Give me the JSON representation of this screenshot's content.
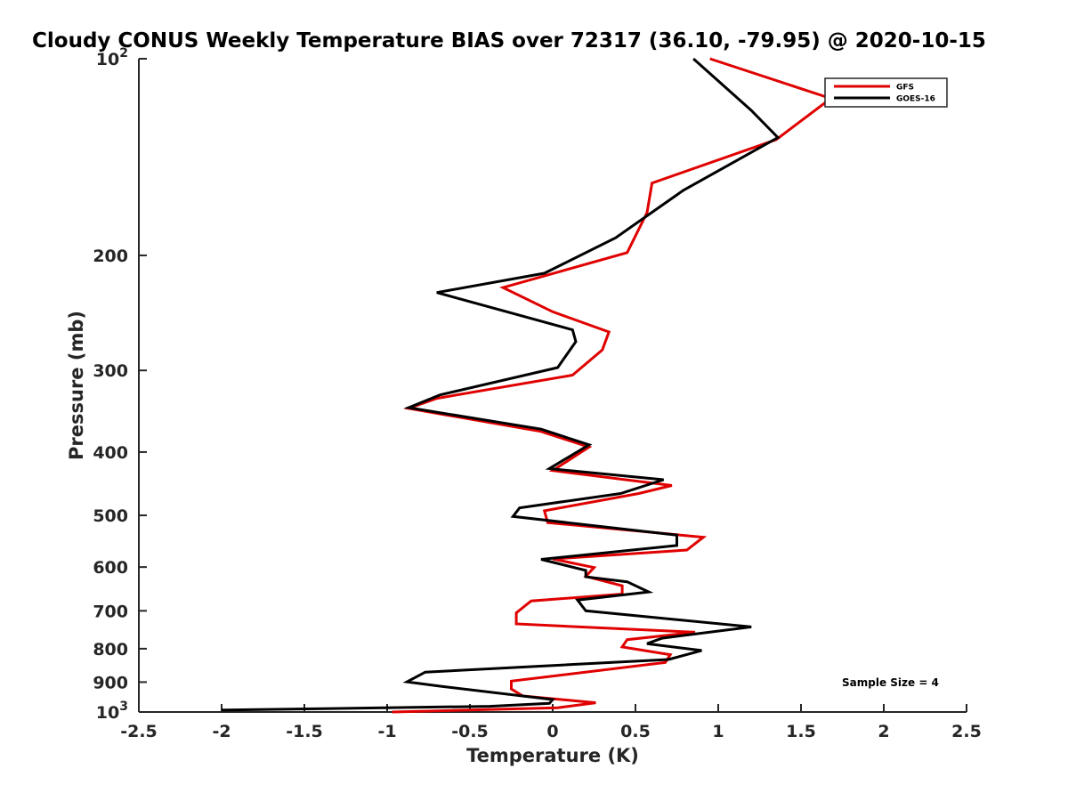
{
  "chart_data": {
    "type": "line",
    "title": "Cloudy CONUS Weekly Temperature BIAS over 72317 (36.10, -79.95) @ 2020-10-15",
    "xlabel": "Temperature (K)",
    "ylabel": "Pressure (mb)",
    "xlim": [
      -2.5,
      2.5
    ],
    "ylim": [
      100,
      1000
    ],
    "y_scale": "log",
    "y_reversed": true,
    "x_ticks": [
      "-2.5",
      "-2",
      "-1.5",
      "-1",
      "-0.5",
      "0",
      "0.5",
      "1",
      "1.5",
      "2",
      "2.5"
    ],
    "y_ticks": [
      {
        "value": 100,
        "base": "10",
        "exp": "2"
      },
      {
        "value": 200,
        "label": "200"
      },
      {
        "value": 300,
        "label": "300"
      },
      {
        "value": 400,
        "label": "400"
      },
      {
        "value": 500,
        "label": "500"
      },
      {
        "value": 600,
        "label": "600"
      },
      {
        "value": 700,
        "label": "700"
      },
      {
        "value": 800,
        "label": "800"
      },
      {
        "value": 900,
        "label": "900"
      },
      {
        "value": 1000,
        "base": "10",
        "exp": "3"
      }
    ],
    "legend": "top-right",
    "grid": false,
    "annotation": "Sample Size = 4",
    "series": [
      {
        "name": "GFS",
        "color": "#e00000",
        "points": [
          [
            0.95,
            100
          ],
          [
            1.68,
            115
          ],
          [
            1.35,
            133
          ],
          [
            0.6,
            155
          ],
          [
            0.57,
            172
          ],
          [
            0.45,
            198
          ],
          [
            -0.3,
            224
          ],
          [
            0.0,
            244
          ],
          [
            0.34,
            262
          ],
          [
            0.3,
            279
          ],
          [
            0.12,
            305
          ],
          [
            -0.7,
            331
          ],
          [
            -0.87,
            343
          ],
          [
            -0.07,
            372
          ],
          [
            0.22,
            393
          ],
          [
            0.0,
            427
          ],
          [
            0.72,
            450
          ],
          [
            0.52,
            463
          ],
          [
            -0.05,
            492
          ],
          [
            -0.03,
            513
          ],
          [
            0.91,
            540
          ],
          [
            0.81,
            565
          ],
          [
            0.0,
            583
          ],
          [
            0.25,
            601
          ],
          [
            0.2,
            620
          ],
          [
            0.42,
            641
          ],
          [
            0.42,
            660
          ],
          [
            -0.13,
            676
          ],
          [
            -0.22,
            705
          ],
          [
            -0.22,
            733
          ],
          [
            0.86,
            755
          ],
          [
            0.45,
            775
          ],
          [
            0.42,
            795
          ],
          [
            0.71,
            817
          ],
          [
            0.68,
            840
          ],
          [
            -0.25,
            897
          ],
          [
            -0.25,
            922
          ],
          [
            -0.18,
            945
          ],
          [
            0.26,
            968
          ],
          [
            0.03,
            985
          ],
          [
            -0.97,
            1000
          ]
        ]
      },
      {
        "name": "GOES-16",
        "color": "#000000",
        "points": [
          [
            0.85,
            100
          ],
          [
            1.2,
            120
          ],
          [
            1.36,
            132
          ],
          [
            0.79,
            159
          ],
          [
            0.38,
            188
          ],
          [
            -0.05,
            213
          ],
          [
            -0.7,
            228
          ],
          [
            0.12,
            260
          ],
          [
            0.14,
            271
          ],
          [
            0.03,
            297
          ],
          [
            -0.68,
            327
          ],
          [
            -0.87,
            342
          ],
          [
            -0.07,
            369
          ],
          [
            0.22,
            390
          ],
          [
            -0.02,
            424
          ],
          [
            0.67,
            441
          ],
          [
            0.41,
            463
          ],
          [
            -0.2,
            487
          ],
          [
            -0.24,
            502
          ],
          [
            0.75,
            536
          ],
          [
            0.75,
            556
          ],
          [
            -0.07,
            584
          ],
          [
            0.2,
            607
          ],
          [
            0.2,
            621
          ],
          [
            0.45,
            632
          ],
          [
            0.58,
            655
          ],
          [
            0.15,
            674
          ],
          [
            0.2,
            700
          ],
          [
            1.2,
            741
          ],
          [
            0.66,
            771
          ],
          [
            0.57,
            786
          ],
          [
            0.9,
            805
          ],
          [
            0.7,
            831
          ],
          [
            -0.77,
            869
          ],
          [
            -0.88,
            899
          ],
          [
            -0.68,
            913
          ],
          [
            0.0,
            957
          ],
          [
            -0.02,
            970
          ],
          [
            -0.38,
            980
          ],
          [
            -2.0,
            993
          ]
        ]
      }
    ]
  }
}
